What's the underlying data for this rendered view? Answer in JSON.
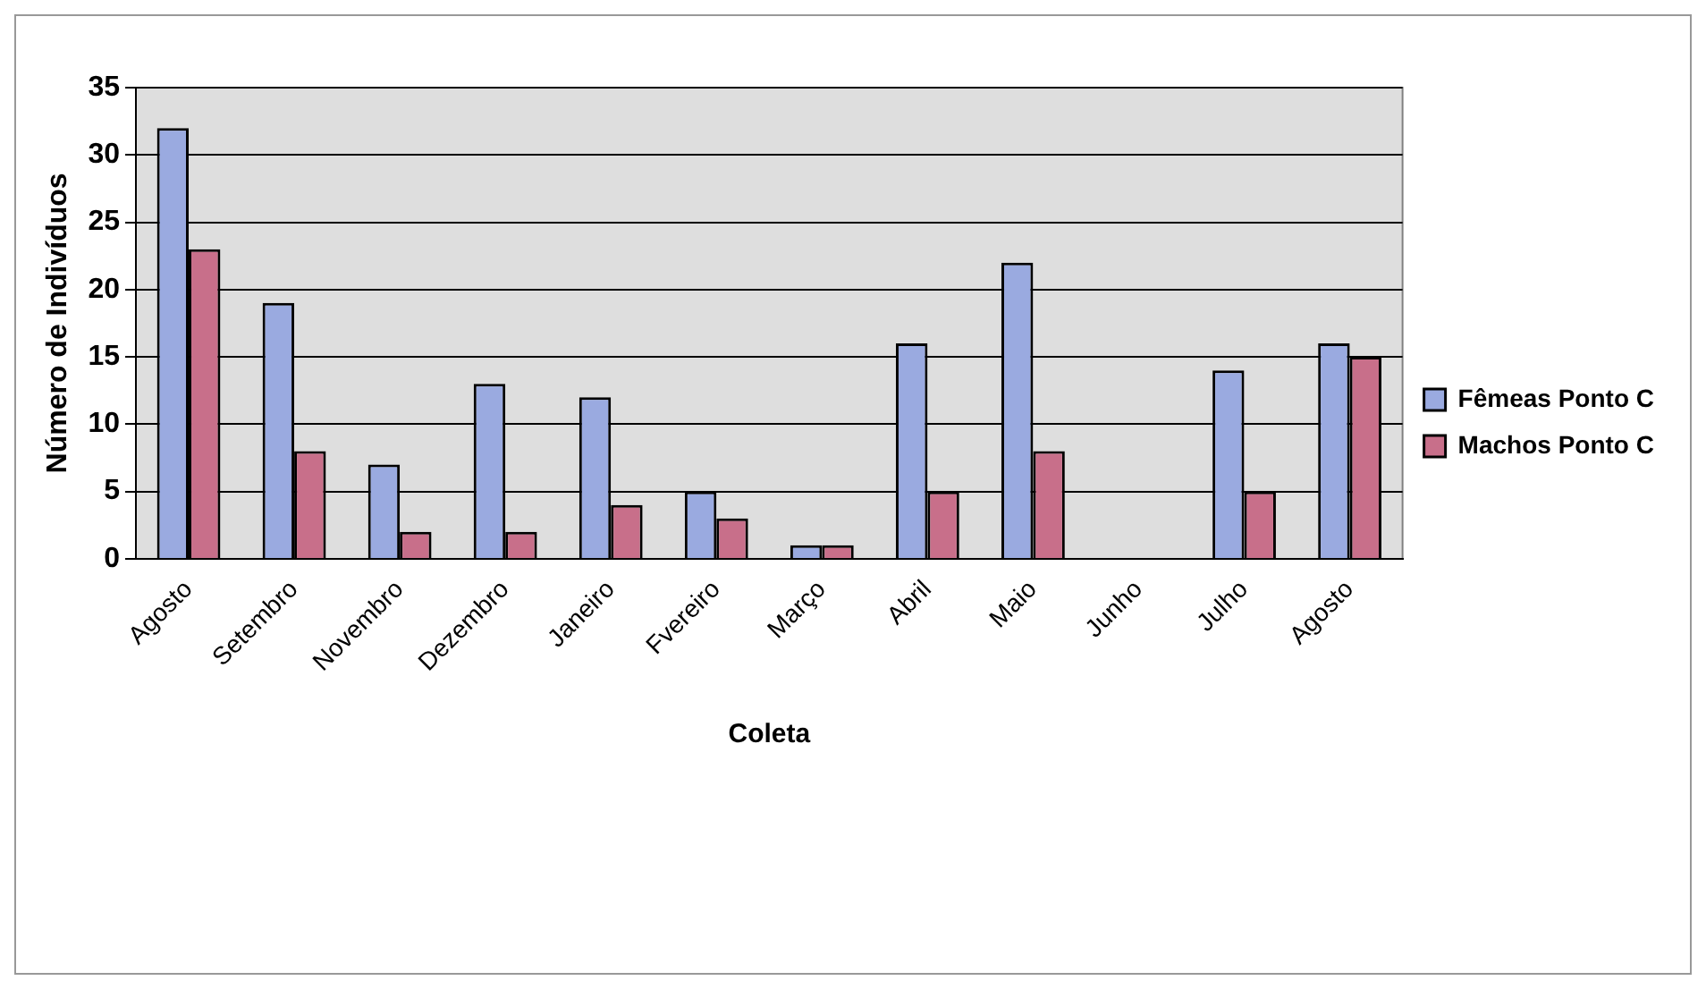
{
  "chart_data": {
    "type": "bar",
    "xlabel": "Coleta",
    "ylabel": "Número de Indivíduos",
    "categories": [
      "Agosto",
      "Setembro",
      "Novembro",
      "Dezembro",
      "Janeiro",
      "Fvereiro",
      "Março",
      "Abril",
      "Maio",
      "Junho",
      "Julho",
      "Agosto"
    ],
    "series": [
      {
        "name": "Fêmeas Ponto C",
        "color": "#9aaae0",
        "values": [
          32,
          19,
          7,
          13,
          12,
          5,
          1,
          16,
          22,
          0,
          14,
          16
        ]
      },
      {
        "name": "Machos Ponto C",
        "color": "#c86f8a",
        "values": [
          23,
          8,
          2,
          2,
          4,
          3,
          1,
          5,
          8,
          0,
          5,
          15
        ]
      }
    ],
    "ylim": [
      0,
      35
    ],
    "yticks": [
      0,
      5,
      10,
      15,
      20,
      25,
      30,
      35
    ],
    "grid": "y",
    "legend": "right"
  }
}
